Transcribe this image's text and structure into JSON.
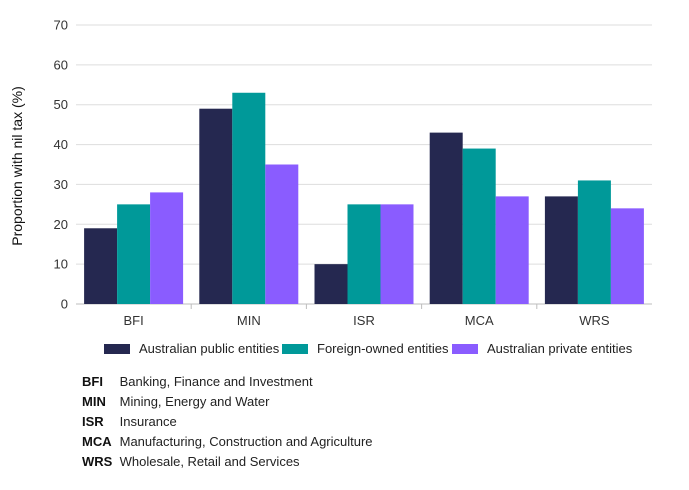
{
  "chart_data": {
    "type": "bar",
    "ylabel": "Proportion with nil tax (%)",
    "xlabel": "",
    "ylim": [
      0,
      70
    ],
    "yticks": [
      0,
      10,
      20,
      30,
      40,
      50,
      60,
      70
    ],
    "grid": true,
    "legend_position": "bottom",
    "categories": [
      "BFI",
      "MIN",
      "ISR",
      "MCA",
      "WRS"
    ],
    "series": [
      {
        "name": "Australian public entities",
        "color": "#252850",
        "values": [
          19,
          49,
          10,
          43,
          27
        ]
      },
      {
        "name": "Foreign-owned entities",
        "color": "#009999",
        "values": [
          25,
          53,
          25,
          39,
          31
        ]
      },
      {
        "name": "Australian private entities",
        "color": "#8a5cff",
        "values": [
          28,
          35,
          25,
          27,
          24
        ]
      }
    ]
  },
  "abbreviations": [
    {
      "code": "BFI",
      "desc": "Banking, Finance and Investment"
    },
    {
      "code": "MIN",
      "desc": "Mining, Energy and Water"
    },
    {
      "code": "ISR",
      "desc": "Insurance"
    },
    {
      "code": "MCA",
      "desc": "Manufacturing, Construction and Agriculture"
    },
    {
      "code": "WRS",
      "desc": "Wholesale, Retail and Services"
    }
  ]
}
